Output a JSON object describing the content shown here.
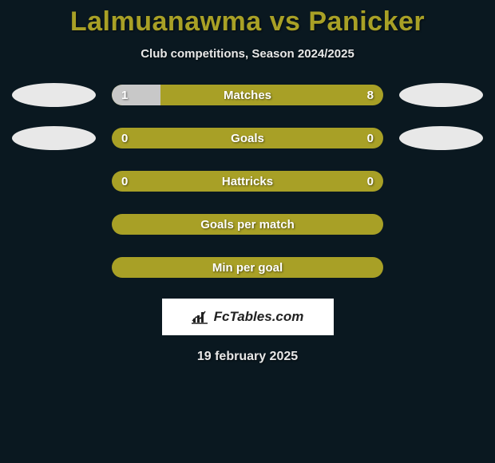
{
  "title": "Lalmuanawma vs Panicker",
  "subtitle": "Club competitions, Season 2024/2025",
  "colors": {
    "background": "#0a1820",
    "accent": "#a8a026",
    "bar_fill_left": "#c8c8c8",
    "oval": "#e8e8e8",
    "text_light": "#e8e8e8",
    "text_white": "#ffffff",
    "brand_bg": "#ffffff",
    "brand_text": "#222222"
  },
  "stats": [
    {
      "label": "Matches",
      "left_value": "1",
      "right_value": "8",
      "left_fill_pct": 18,
      "show_left_oval": true,
      "show_right_oval": true,
      "show_values": true
    },
    {
      "label": "Goals",
      "left_value": "0",
      "right_value": "0",
      "left_fill_pct": 0,
      "show_left_oval": true,
      "show_right_oval": true,
      "show_values": true
    },
    {
      "label": "Hattricks",
      "left_value": "0",
      "right_value": "0",
      "left_fill_pct": 0,
      "show_left_oval": false,
      "show_right_oval": false,
      "show_values": true
    },
    {
      "label": "Goals per match",
      "left_value": "",
      "right_value": "",
      "left_fill_pct": 0,
      "show_left_oval": false,
      "show_right_oval": false,
      "show_values": false
    },
    {
      "label": "Min per goal",
      "left_value": "",
      "right_value": "",
      "left_fill_pct": 0,
      "show_left_oval": false,
      "show_right_oval": false,
      "show_values": false
    }
  ],
  "brand": {
    "icon_name": "bar-chart-icon",
    "text": "FcTables.com"
  },
  "date": "19 february 2025"
}
